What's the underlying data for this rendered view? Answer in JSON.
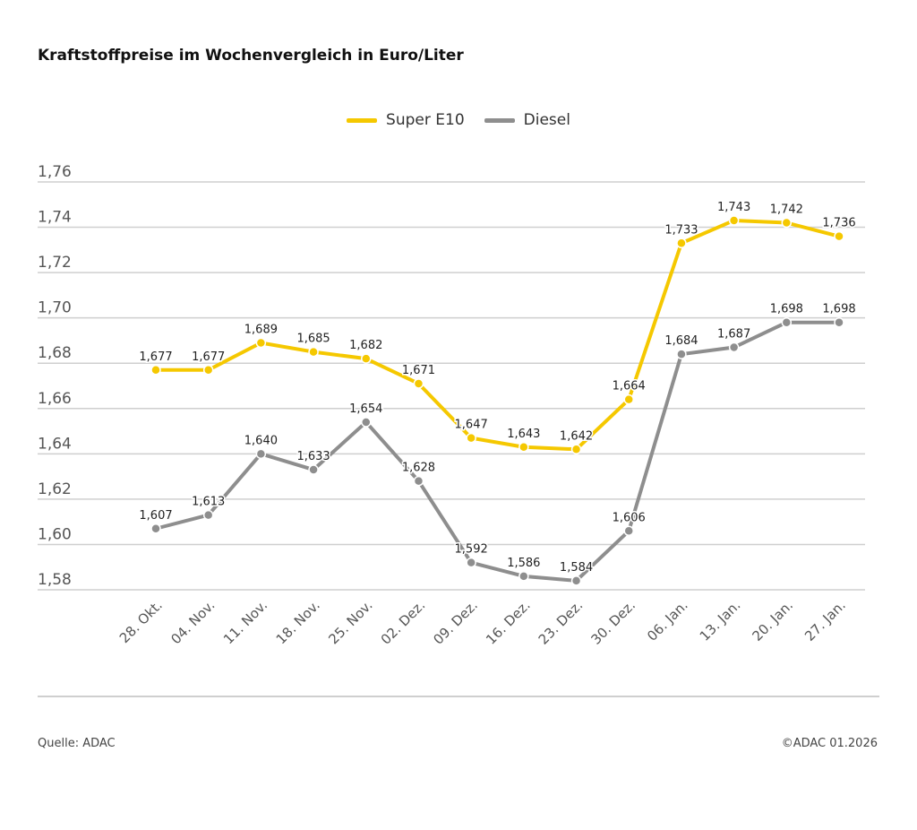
{
  "title": "Kraftstoffpreise im Wochenvergleich in Euro/Liter",
  "source": "Quelle: ADAC",
  "copyright": "©ADAC 01.2026",
  "chart_data": {
    "type": "line",
    "title": "Kraftstoffpreise im Wochenvergleich in Euro/Liter",
    "categories": [
      "28. Okt.",
      "04. Nov.",
      "11. Nov.",
      "18. Nov.",
      "25. Nov.",
      "02. Dez.",
      "09. Dez.",
      "16. Dez.",
      "23. Dez.",
      "30. Dez.",
      "06. Jan.",
      "13. Jan.",
      "20. Jan.",
      "27. Jan."
    ],
    "series": [
      {
        "name": "Super E10",
        "color": "#f5c800",
        "values": [
          1.677,
          1.677,
          1.689,
          1.685,
          1.682,
          1.671,
          1.647,
          1.643,
          1.642,
          1.664,
          1.733,
          1.743,
          1.742,
          1.736
        ]
      },
      {
        "name": "Diesel",
        "color": "#8e8e8e",
        "values": [
          1.607,
          1.613,
          1.64,
          1.633,
          1.654,
          1.628,
          1.592,
          1.586,
          1.584,
          1.606,
          1.684,
          1.687,
          1.698,
          1.698
        ]
      }
    ],
    "yticks": [
      "1,58",
      "1,60",
      "1,62",
      "1,64",
      "1,66",
      "1,68",
      "1,70",
      "1,72",
      "1,74",
      "1,76"
    ],
    "ylim": [
      1.58,
      1.76
    ],
    "grid": true,
    "legend": "top-center",
    "decimal_separator": ","
  }
}
